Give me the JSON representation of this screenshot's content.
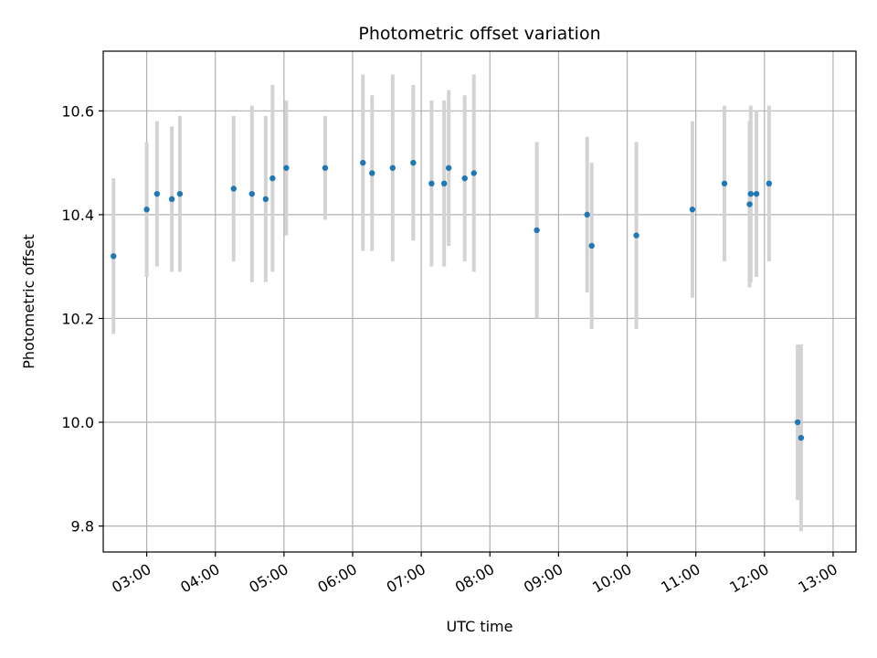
{
  "chart_data": {
    "type": "scatter",
    "title": "Photometric offset variation",
    "xlabel": "UTC time",
    "ylabel": "Photometric offset",
    "x_ticks": [
      "03:00",
      "04:00",
      "05:00",
      "06:00",
      "07:00",
      "08:00",
      "09:00",
      "10:00",
      "11:00",
      "12:00",
      "13:00"
    ],
    "y_ticks": [
      "9.8",
      "10.0",
      "10.2",
      "10.4",
      "10.6"
    ],
    "xlim": [
      "02:22",
      "13:20"
    ],
    "ylim": [
      9.75,
      10.715
    ],
    "grid": true,
    "colors": {
      "point": "#1f77b4",
      "errorbar": "#d3d3d3",
      "grid": "#b0b0b0"
    },
    "series": [
      {
        "points": [
          {
            "x": "02:31",
            "y": 10.32,
            "err": 0.15
          },
          {
            "x": "03:00",
            "y": 10.41,
            "err": 0.13
          },
          {
            "x": "03:09",
            "y": 10.44,
            "err": 0.14
          },
          {
            "x": "03:22",
            "y": 10.43,
            "err": 0.14
          },
          {
            "x": "03:29",
            "y": 10.44,
            "err": 0.15
          },
          {
            "x": "04:16",
            "y": 10.45,
            "err": 0.14
          },
          {
            "x": "04:32",
            "y": 10.44,
            "err": 0.17
          },
          {
            "x": "04:44",
            "y": 10.43,
            "err": 0.16
          },
          {
            "x": "04:50",
            "y": 10.47,
            "err": 0.18
          },
          {
            "x": "05:02",
            "y": 10.49,
            "err": 0.13
          },
          {
            "x": "05:36",
            "y": 10.49,
            "err": 0.1
          },
          {
            "x": "06:09",
            "y": 10.5,
            "err": 0.17
          },
          {
            "x": "06:17",
            "y": 10.48,
            "err": 0.15
          },
          {
            "x": "06:35",
            "y": 10.49,
            "err": 0.18
          },
          {
            "x": "06:53",
            "y": 10.5,
            "err": 0.15
          },
          {
            "x": "07:09",
            "y": 10.46,
            "err": 0.16
          },
          {
            "x": "07:20",
            "y": 10.46,
            "err": 0.16
          },
          {
            "x": "07:24",
            "y": 10.49,
            "err": 0.15
          },
          {
            "x": "07:38",
            "y": 10.47,
            "err": 0.16
          },
          {
            "x": "07:46",
            "y": 10.48,
            "err": 0.19
          },
          {
            "x": "08:41",
            "y": 10.37,
            "err": 0.17
          },
          {
            "x": "09:25",
            "y": 10.4,
            "err": 0.15
          },
          {
            "x": "09:29",
            "y": 10.34,
            "err": 0.16
          },
          {
            "x": "10:08",
            "y": 10.36,
            "err": 0.18
          },
          {
            "x": "10:57",
            "y": 10.41,
            "err": 0.17
          },
          {
            "x": "11:25",
            "y": 10.46,
            "err": 0.15
          },
          {
            "x": "11:47",
            "y": 10.42,
            "err": 0.16
          },
          {
            "x": "11:48",
            "y": 10.44,
            "err": 0.17
          },
          {
            "x": "11:53",
            "y": 10.44,
            "err": 0.16
          },
          {
            "x": "12:04",
            "y": 10.46,
            "err": 0.15
          },
          {
            "x": "12:29",
            "y": 10.0,
            "err": 0.15
          },
          {
            "x": "12:32",
            "y": 9.97,
            "err": 0.18
          }
        ]
      }
    ]
  }
}
